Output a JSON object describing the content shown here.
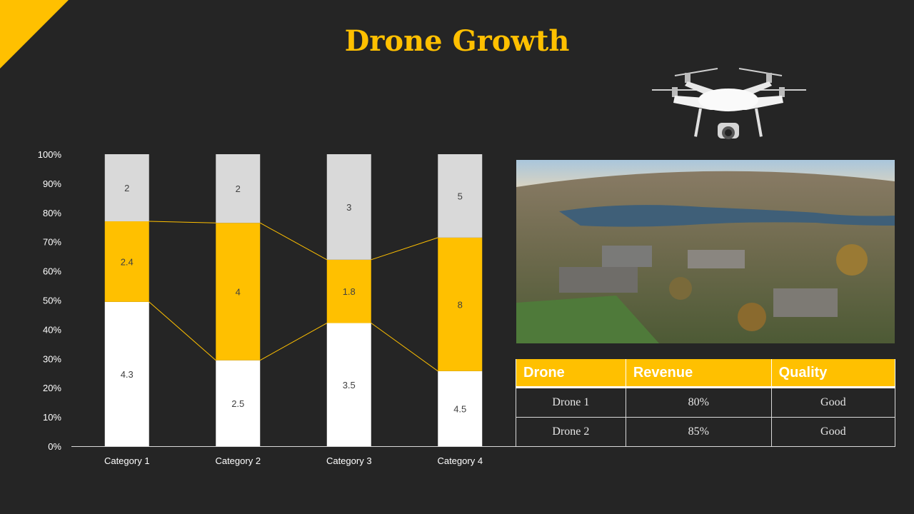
{
  "slide": {
    "title": "Drone Growth"
  },
  "colors": {
    "accent": "#FFC000",
    "background": "#252525",
    "segment_light": "#D9D9D9",
    "segment_white": "#FFFFFF",
    "connector": "#FFC000"
  },
  "images": {
    "drone": "quadcopter-drone-illustration",
    "photo": "aerial-campus-river-photo"
  },
  "chart_data": {
    "type": "bar",
    "stacked": "percent",
    "categories": [
      "Category 1",
      "Category 2",
      "Category 3",
      "Category 4"
    ],
    "series": [
      {
        "name": "",
        "values": [
          4.3,
          2.5,
          3.5,
          4.5
        ],
        "color": "#FFFFFF"
      },
      {
        "name": "",
        "values": [
          2.4,
          4,
          1.8,
          8
        ],
        "color": "#FFC000"
      },
      {
        "name": "",
        "values": [
          2,
          2,
          3,
          5
        ],
        "color": "#D9D9D9"
      }
    ],
    "y_ticks": [
      "0%",
      "10%",
      "20%",
      "30%",
      "40%",
      "50%",
      "60%",
      "70%",
      "80%",
      "90%",
      "100%"
    ],
    "ylim": [
      0,
      100
    ],
    "series_lines": true,
    "grid": false,
    "legend": "none"
  },
  "table": {
    "headers": [
      "Drone",
      "Revenue",
      "Quality"
    ],
    "rows": [
      [
        "Drone 1",
        "80%",
        "Good"
      ],
      [
        "Drone 2",
        "85%",
        "Good"
      ]
    ]
  }
}
